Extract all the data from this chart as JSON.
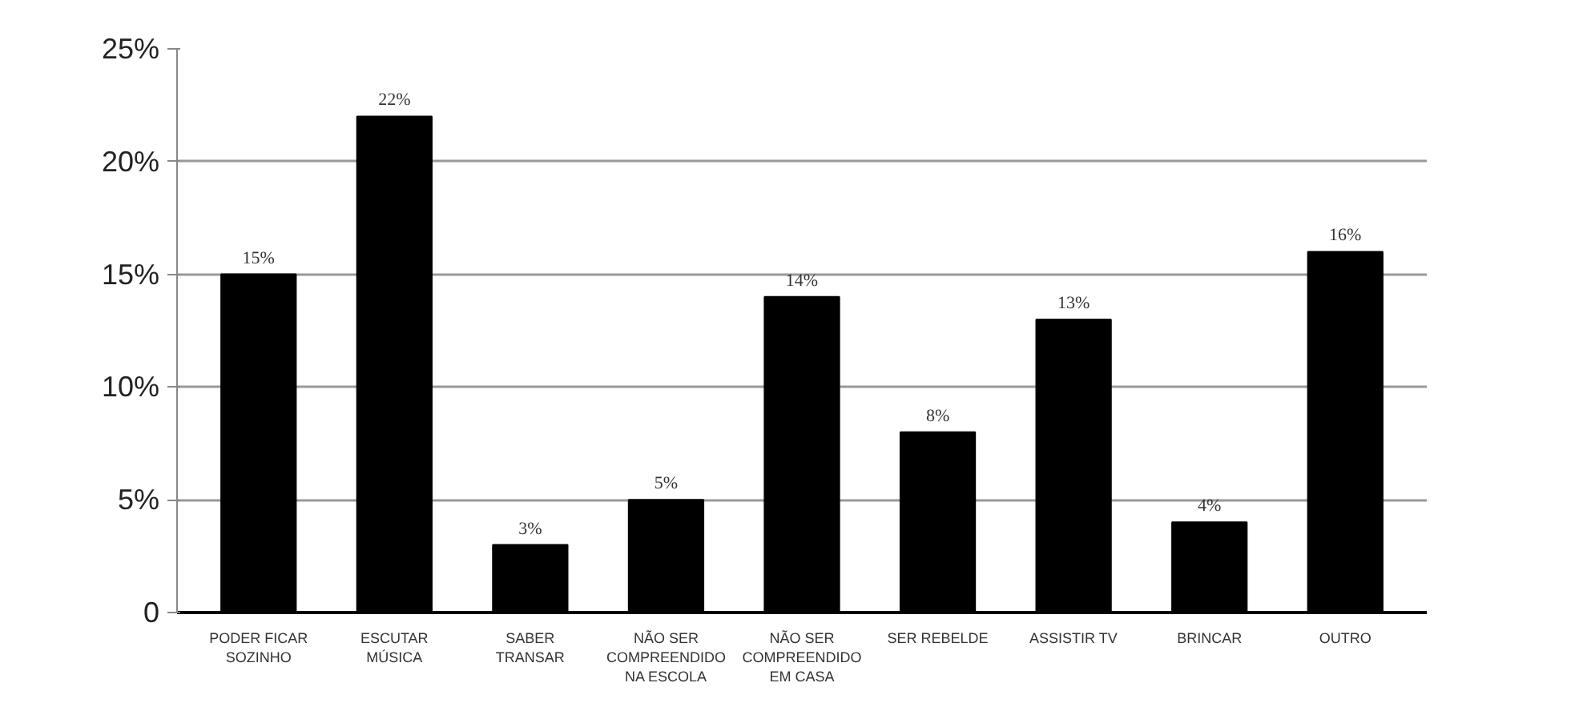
{
  "chart_data": {
    "type": "bar",
    "categories": [
      "PODER FICAR\nSOZINHO",
      "ESCUTAR\nMÚSICA",
      "SABER\nTRANSAR",
      "NÃO SER\nCOMPREENDIDO\nNA ESCOLA",
      "NÃO SER\nCOMPREENDIDO\nEM CASA",
      "SER REBELDE",
      "ASSISTIR TV",
      "BRINCAR",
      "OUTRO"
    ],
    "values": [
      15,
      22,
      3,
      5,
      14,
      8,
      13,
      4,
      16
    ],
    "value_labels": [
      "15%",
      "22%",
      "3%",
      "5%",
      "14%",
      "8%",
      "13%",
      "4%",
      "16%"
    ],
    "color": "#000000",
    "ylim": [
      0,
      25
    ],
    "yticks": [
      0,
      {
        "value": 5,
        "label": "5%"
      },
      {
        "value": 10,
        "label": "10%"
      },
      {
        "value": 15,
        "label": "15%"
      },
      {
        "value": 20,
        "label": "20%"
      },
      {
        "value": 25,
        "label": "25%"
      }
    ],
    "grid": "y"
  }
}
